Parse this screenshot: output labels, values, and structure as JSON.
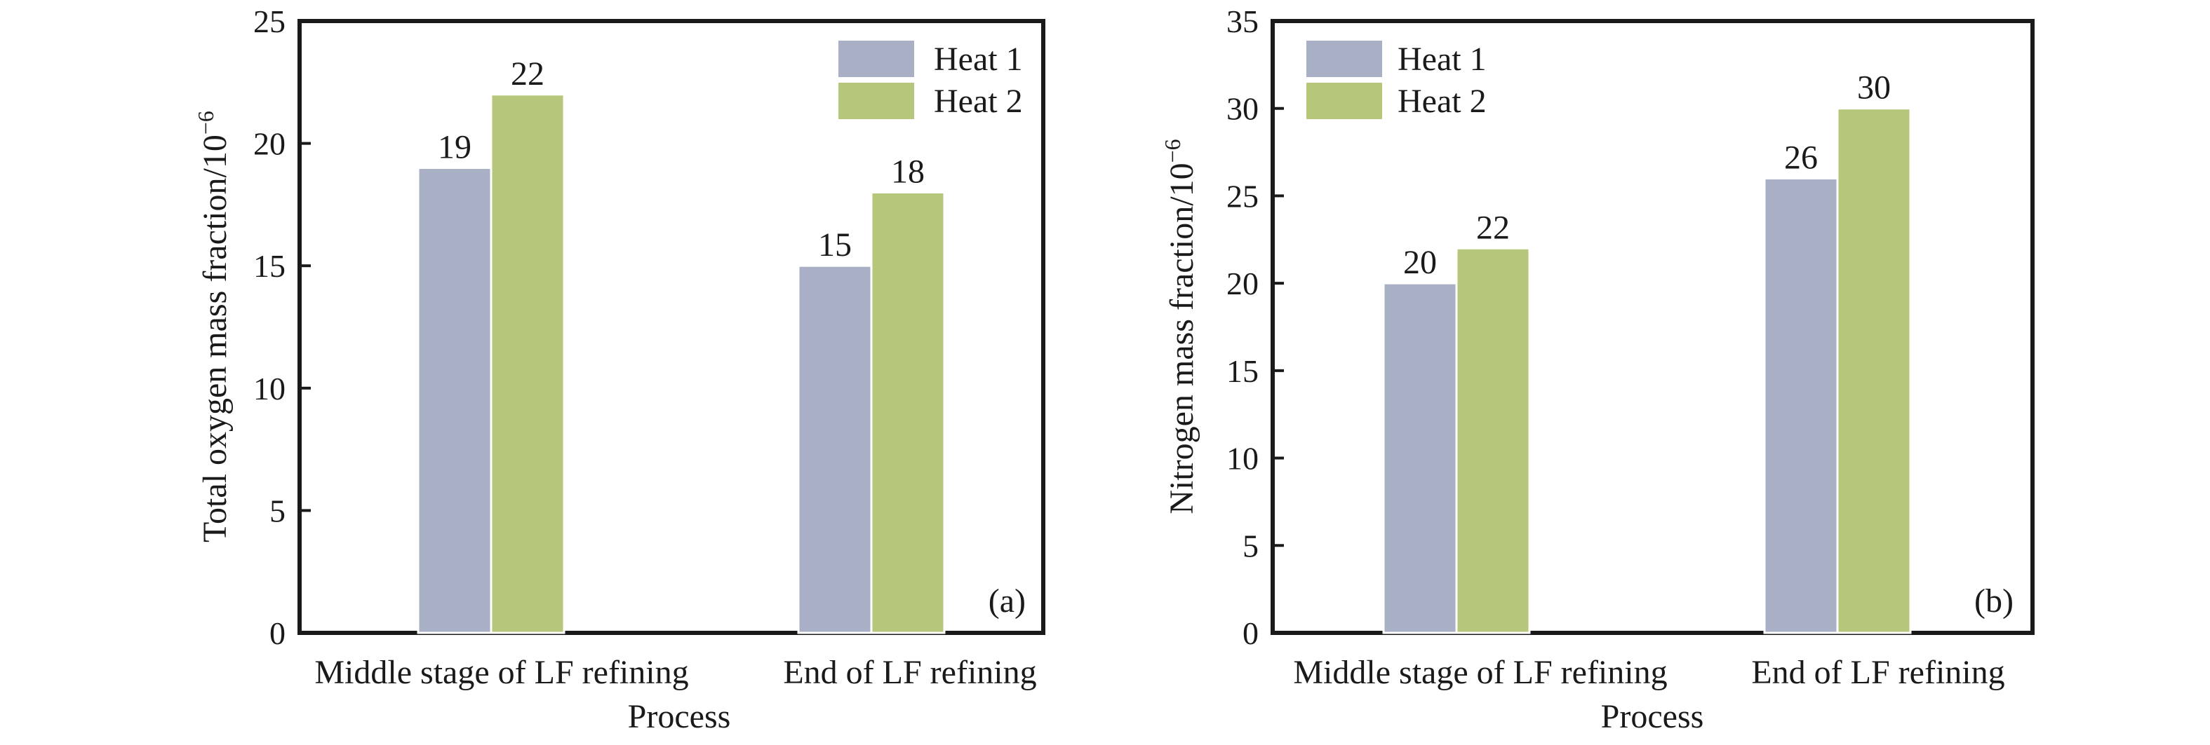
{
  "chart_data": [
    {
      "type": "bar",
      "panel_label": "(a)",
      "categories": [
        "Middle stage of LF refining",
        "End of LF refining"
      ],
      "series": [
        {
          "name": "Heat 1",
          "values": [
            19,
            15
          ],
          "color": "#a9afc4"
        },
        {
          "name": "Heat 2",
          "values": [
            22,
            18
          ],
          "color": "#b6c67a"
        }
      ],
      "ylabel_main": "Total oxygen mass fraction/10",
      "ylabel_exp": "−6",
      "xlabel": "Process",
      "ylim": [
        0,
        25
      ],
      "yticks": [
        0,
        5,
        10,
        15,
        20,
        25
      ],
      "data_labels": true,
      "legend_position": "top-right",
      "grid": false
    },
    {
      "type": "bar",
      "panel_label": "(b)",
      "categories": [
        "Middle stage of LF refining",
        "End of LF refining"
      ],
      "series": [
        {
          "name": "Heat 1",
          "values": [
            20,
            26
          ],
          "color": "#a9afc4"
        },
        {
          "name": "Heat 2",
          "values": [
            22,
            30
          ],
          "color": "#b6c67a"
        }
      ],
      "ylabel_main": "Nitrogen mass fraction/10",
      "ylabel_exp": "−6",
      "xlabel": "Process",
      "ylim": [
        0,
        35
      ],
      "yticks": [
        0,
        5,
        10,
        15,
        20,
        25,
        30,
        35
      ],
      "data_labels": true,
      "legend_position": "top-left",
      "grid": false
    }
  ]
}
